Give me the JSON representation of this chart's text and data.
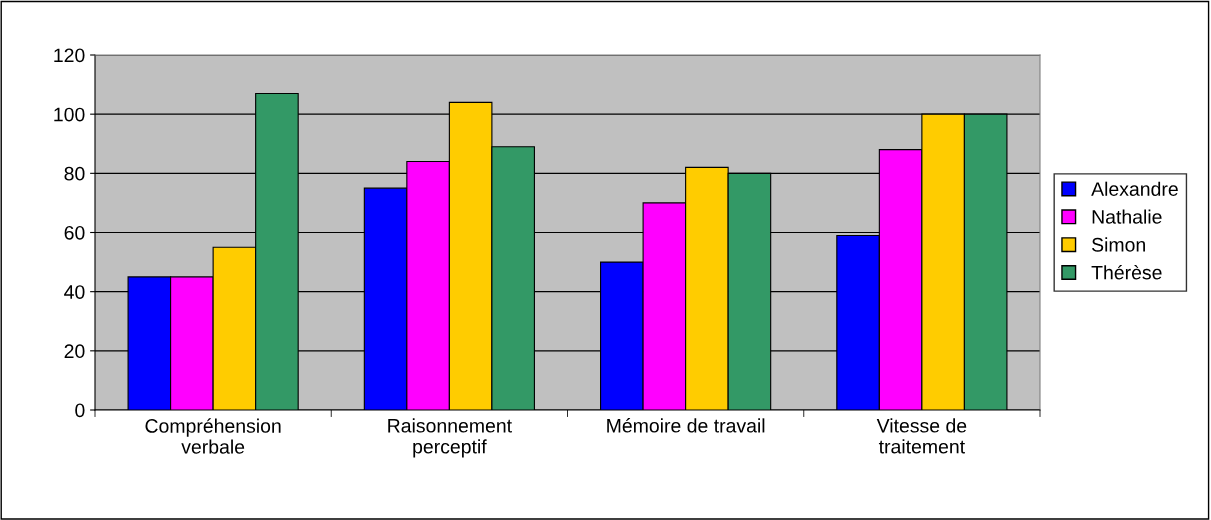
{
  "chart_data": {
    "type": "bar",
    "categories": [
      "Compréhension\nverbale",
      "Raisonnement\nperceptif",
      "Mémoire de travail",
      "Vitesse de\ntraitement"
    ],
    "series": [
      {
        "name": "Alexandre",
        "color": "#0000ff",
        "values": [
          45,
          75,
          50,
          59
        ]
      },
      {
        "name": "Nathalie",
        "color": "#ff00ff",
        "values": [
          45,
          84,
          70,
          88
        ]
      },
      {
        "name": "Simon",
        "color": "#ffcc00",
        "values": [
          55,
          104,
          82,
          100
        ]
      },
      {
        "name": "Thérèse",
        "color": "#339966",
        "values": [
          107,
          89,
          80,
          100
        ]
      }
    ],
    "ylim": [
      0,
      120
    ],
    "yticks": [
      0,
      20,
      40,
      60,
      80,
      100,
      120
    ],
    "grid": "y",
    "legend": "right"
  }
}
